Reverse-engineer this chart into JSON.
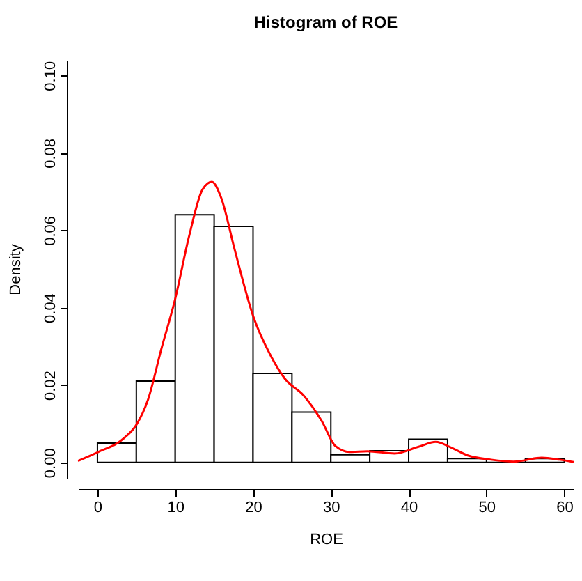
{
  "chart_data": {
    "type": "histogram",
    "title": "Histogram of ROE",
    "xlabel": "ROE",
    "ylabel": "Density",
    "bins": [
      0,
      5,
      10,
      15,
      20,
      25,
      30,
      35,
      40,
      45,
      50,
      55,
      60
    ],
    "values": [
      0.005,
      0.021,
      0.064,
      0.061,
      0.023,
      0.013,
      0.002,
      0.003,
      0.006,
      0.001,
      0.0,
      0.001
    ],
    "colors": [
      "#ffffff",
      "#ffffff",
      "#ffffff",
      "#ffffff",
      "#ffffff",
      "#ffffff",
      "#ffffff",
      "#ffffff",
      "#ffffff",
      "#ffffff",
      "#000000",
      "#ffffff"
    ],
    "series": [
      {
        "type": "line",
        "color": "#ff0000",
        "x": [
          -2.5,
          0,
          3.5,
          5,
          6.5,
          8.2,
          10,
          11.8,
          13.5,
          14.7,
          15.9,
          17.6,
          20,
          22.4,
          24.1,
          26.5,
          28.8,
          30.6,
          32.4,
          34.7,
          38.2,
          41.2,
          43.5,
          45.3,
          47.6,
          50.6,
          53.5,
          57.1,
          59.4,
          61.2
        ],
        "values": [
          0.0004,
          0.0026,
          0.0064,
          0.0097,
          0.0162,
          0.0292,
          0.0423,
          0.0586,
          0.0705,
          0.0725,
          0.0684,
          0.0553,
          0.0379,
          0.0271,
          0.0216,
          0.0173,
          0.0108,
          0.0042,
          0.0027,
          0.0029,
          0.0023,
          0.004,
          0.0053,
          0.004,
          0.0018,
          0.0007,
          0.0002,
          0.0012,
          0.0007,
          0.0001
        ]
      }
    ],
    "xlim": [
      -2.5,
      61.2
    ],
    "ylim": [
      -0.004,
      0.104
    ],
    "xticks": [
      0,
      10,
      20,
      30,
      40,
      50,
      60
    ],
    "yticks": [
      {
        "value": 0,
        "label": "0.00"
      },
      {
        "value": 0.02,
        "label": "0.02"
      },
      {
        "value": 0.04,
        "label": "0.04"
      },
      {
        "value": 0.06,
        "label": "0.06"
      },
      {
        "value": 0.08,
        "label": "0.08"
      },
      {
        "value": 0.1,
        "label": "0.10"
      }
    ],
    "grid": false
  }
}
